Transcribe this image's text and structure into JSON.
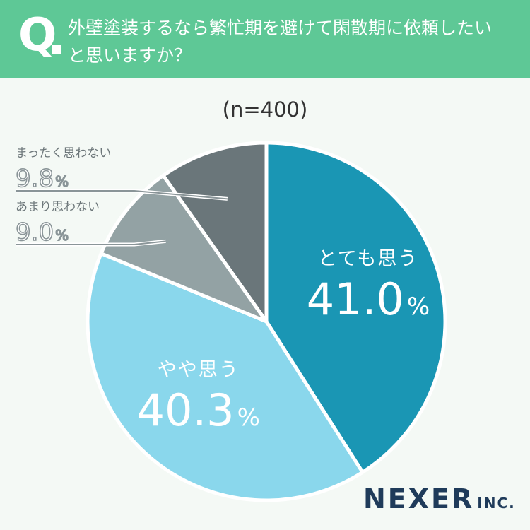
{
  "header": {
    "q_letter": "Q",
    "question_line1": "外壁塗装するなら繁忙期を避けて閑散期に依頼したい",
    "question_line2": "と思いますか？"
  },
  "sample_size": "(n=400)",
  "brand": {
    "name": "NEXER",
    "suffix": "INC."
  },
  "colors": {
    "header": "#5ec896",
    "background": "#f4f9f5",
    "slice_strong_yes": "#1a96b4",
    "slice_yes": "#8ad7ec",
    "slice_not_much": "#93a2a4",
    "slice_not_at_all": "#6a767a",
    "brand": "#1f3b5a"
  },
  "chart_data": {
    "type": "pie",
    "start": "12 o'clock",
    "direction": "clockwise",
    "slices": [
      {
        "label": "とても思う",
        "value": 41.0,
        "display": "41.0",
        "unit": "%",
        "color": "#1a96b4"
      },
      {
        "label": "やや思う",
        "value": 40.3,
        "display": "40.3",
        "unit": "%",
        "color": "#8ad7ec"
      },
      {
        "label": "あまり思わない",
        "value": 9.0,
        "display": "9.0",
        "unit": "%",
        "color": "#93a2a4"
      },
      {
        "label": "まったく思わない",
        "value": 9.8,
        "display": "9.8",
        "unit": "%",
        "color": "#6a767a"
      }
    ]
  }
}
